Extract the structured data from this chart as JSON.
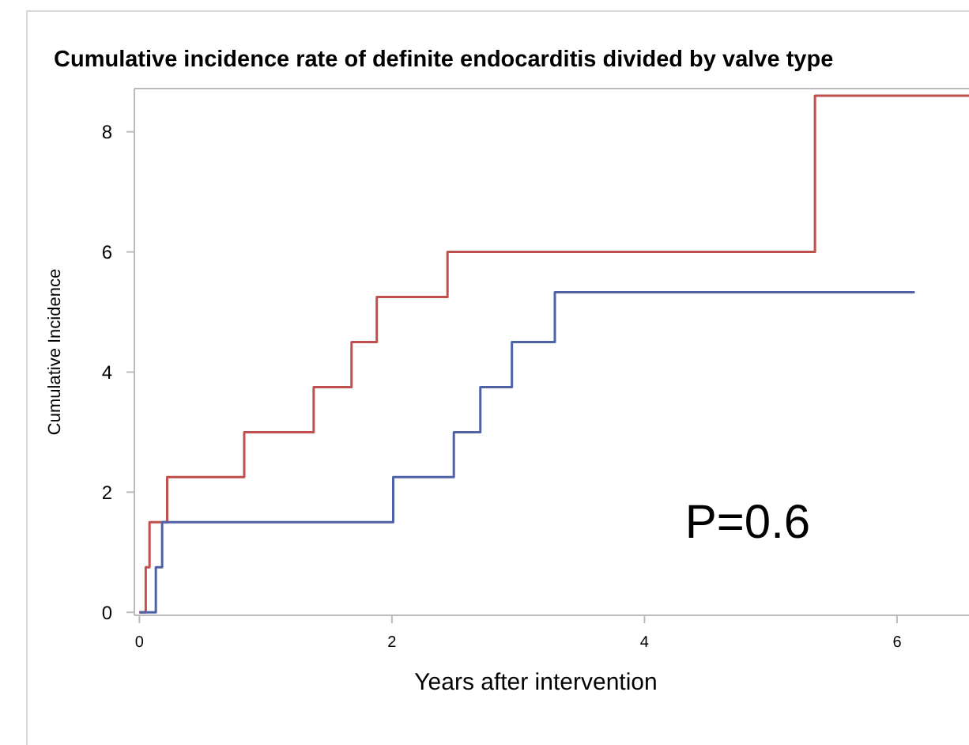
{
  "chart_data": {
    "type": "step",
    "title": "Cumulative incidence rate of definite endocarditis divided by valve type",
    "xlabel": "Years after intervention",
    "ylabel": "Cumulative Incidence",
    "series": [
      {
        "color": "#c0504d",
        "x": [
          0,
          0.05,
          0.08,
          0.22,
          0.83,
          1.38,
          1.68,
          1.88,
          2.44,
          5.35,
          6.57
        ],
        "values": [
          0,
          0.75,
          1.5,
          2.25,
          3.0,
          3.75,
          4.5,
          5.25,
          6.0,
          8.6,
          8.6
        ]
      },
      {
        "color": "#4f62a8",
        "x": [
          0,
          0.13,
          0.18,
          2.01,
          2.49,
          2.7,
          2.95,
          3.29,
          6.14
        ],
        "values": [
          0,
          0.75,
          1.5,
          2.25,
          3.0,
          3.75,
          4.5,
          5.33,
          5.33
        ]
      }
    ],
    "annotations": [
      "P=0.6"
    ],
    "xlim": [
      -0.04,
      6.57
    ],
    "xticks": [
      0,
      2,
      4,
      6
    ],
    "ylim": [
      -0.05,
      8.72
    ],
    "yticks": [
      0,
      2,
      4,
      6,
      8
    ],
    "grid": false
  }
}
